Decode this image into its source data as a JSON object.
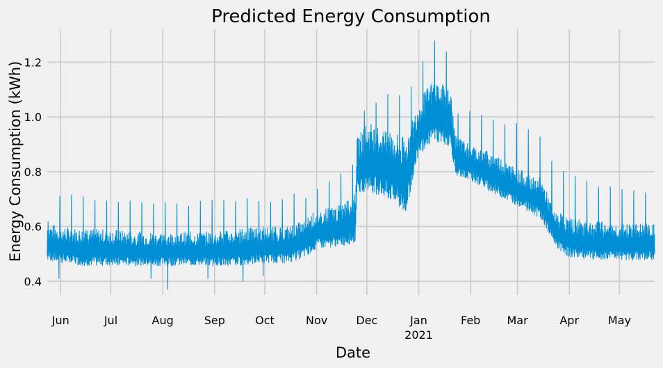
{
  "chart_data": {
    "type": "line",
    "title": "Predicted Energy Consumption",
    "xlabel": "Date",
    "ylabel": "Energy Consumption (kWh)",
    "x_range": [
      "2020-05-24",
      "2021-05-22"
    ],
    "ylim": [
      0.35,
      1.32
    ],
    "grid": true,
    "style": "fivethirtyeight",
    "colors": {
      "background": "#f0f0f0",
      "grid": "#cbcbcb",
      "line": "#008fd5"
    },
    "x_ticks": [
      {
        "date": "2020-06-01",
        "label": "Jun"
      },
      {
        "date": "2020-07-01",
        "label": "Jul"
      },
      {
        "date": "2020-08-01",
        "label": "Aug"
      },
      {
        "date": "2020-09-01",
        "label": "Sep"
      },
      {
        "date": "2020-10-01",
        "label": "Oct"
      },
      {
        "date": "2020-11-01",
        "label": "Nov"
      },
      {
        "date": "2020-12-01",
        "label": "Dec"
      },
      {
        "date": "2021-01-01",
        "label": "Jan",
        "sublabel": "2021"
      },
      {
        "date": "2021-02-01",
        "label": "Feb"
      },
      {
        "date": "2021-03-01",
        "label": "Mar"
      },
      {
        "date": "2021-04-01",
        "label": "Apr"
      },
      {
        "date": "2021-05-01",
        "label": "May"
      }
    ],
    "y_ticks": [
      0.4,
      0.6,
      0.8,
      1.0,
      1.2
    ],
    "series": [
      {
        "color": "#008fd5",
        "points": [
          {
            "date": "2020-05-24",
            "low": 0.47,
            "high": 0.61,
            "peak": 0.62
          },
          {
            "date": "2020-06-01",
            "low": 0.46,
            "high": 0.6,
            "peak": 0.72
          },
          {
            "date": "2020-06-15",
            "low": 0.45,
            "high": 0.59,
            "peak": 0.71
          },
          {
            "date": "2020-07-01",
            "low": 0.45,
            "high": 0.59,
            "peak": 0.7
          },
          {
            "date": "2020-07-15",
            "low": 0.45,
            "high": 0.58,
            "peak": 0.7
          },
          {
            "date": "2020-08-01",
            "low": 0.45,
            "high": 0.58,
            "peak": 0.7
          },
          {
            "date": "2020-08-15",
            "low": 0.45,
            "high": 0.58,
            "peak": 0.69
          },
          {
            "date": "2020-09-01",
            "low": 0.45,
            "high": 0.58,
            "peak": 0.7
          },
          {
            "date": "2020-09-15",
            "low": 0.45,
            "high": 0.59,
            "peak": 0.71
          },
          {
            "date": "2020-10-01",
            "low": 0.46,
            "high": 0.6,
            "peak": 0.7
          },
          {
            "date": "2020-10-15",
            "low": 0.46,
            "high": 0.6,
            "peak": 0.72
          },
          {
            "date": "2020-10-25",
            "low": 0.48,
            "high": 0.63,
            "peak": 0.72
          },
          {
            "date": "2020-11-01",
            "low": 0.51,
            "high": 0.66,
            "peak": 0.75
          },
          {
            "date": "2020-11-15",
            "low": 0.52,
            "high": 0.68,
            "peak": 0.81
          },
          {
            "date": "2020-11-24",
            "low": 0.53,
            "high": 0.72,
            "peak": 0.83
          },
          {
            "date": "2020-11-25",
            "low": 0.7,
            "high": 0.92,
            "peak": 0.95
          },
          {
            "date": "2020-12-01",
            "low": 0.72,
            "high": 0.98,
            "peak": 1.05
          },
          {
            "date": "2020-12-15",
            "low": 0.68,
            "high": 0.96,
            "peak": 1.1
          },
          {
            "date": "2020-12-24",
            "low": 0.63,
            "high": 0.92,
            "peak": 1.08
          },
          {
            "date": "2021-01-01",
            "low": 0.85,
            "high": 1.06,
            "peak": 1.18
          },
          {
            "date": "2021-01-10",
            "low": 0.9,
            "high": 1.14,
            "peak": 1.28
          },
          {
            "date": "2021-01-20",
            "low": 0.88,
            "high": 1.1,
            "peak": 1.23
          },
          {
            "date": "2021-01-23",
            "low": 0.78,
            "high": 0.93,
            "peak": 1.03
          },
          {
            "date": "2021-02-01",
            "low": 0.76,
            "high": 0.9,
            "peak": 1.03
          },
          {
            "date": "2021-02-15",
            "low": 0.71,
            "high": 0.87,
            "peak": 1.0
          },
          {
            "date": "2021-03-01",
            "low": 0.67,
            "high": 0.81,
            "peak": 0.98
          },
          {
            "date": "2021-03-15",
            "low": 0.62,
            "high": 0.78,
            "peak": 0.93
          },
          {
            "date": "2021-03-23",
            "low": 0.52,
            "high": 0.66,
            "peak": 0.83
          },
          {
            "date": "2021-04-01",
            "low": 0.48,
            "high": 0.63,
            "peak": 0.8
          },
          {
            "date": "2021-04-15",
            "low": 0.47,
            "high": 0.62,
            "peak": 0.76
          },
          {
            "date": "2021-05-01",
            "low": 0.47,
            "high": 0.61,
            "peak": 0.74
          },
          {
            "date": "2021-05-22",
            "low": 0.47,
            "high": 0.61,
            "peak": 0.73
          }
        ],
        "outliers": [
          {
            "date": "2020-05-31",
            "value": 0.41
          },
          {
            "date": "2020-07-25",
            "value": 0.41
          },
          {
            "date": "2020-08-04",
            "value": 0.37
          },
          {
            "date": "2020-08-28",
            "value": 0.41
          },
          {
            "date": "2020-09-18",
            "value": 0.4
          },
          {
            "date": "2020-09-30",
            "value": 0.42
          }
        ]
      }
    ]
  }
}
